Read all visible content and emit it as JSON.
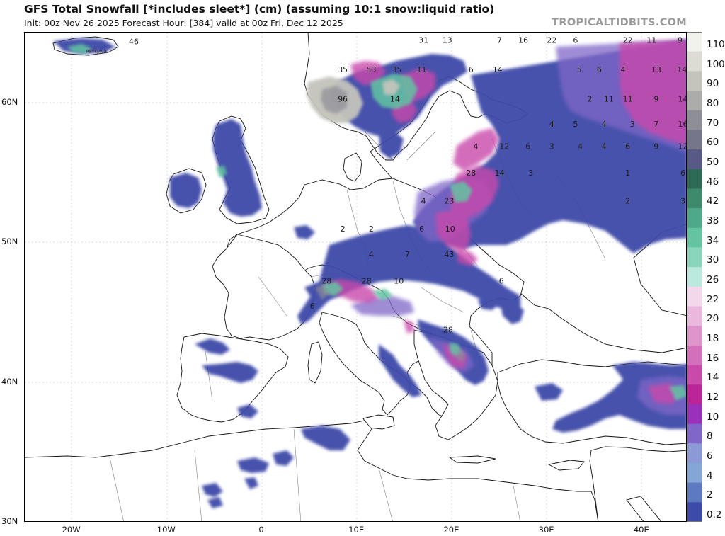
{
  "header": {
    "title": "GFS Total Snowfall [*includes sleet*] (cm) (assuming 10:1 snow:liquid ratio)",
    "subtitle": "Init: 00z Nov 26 2025   Forecast Hour: [384]   valid at 00z Fri, Dec 12 2025",
    "brand": "TROPICALTIDBITS.COM"
  },
  "map": {
    "lat_labels": [
      {
        "text": "60N",
        "lat": 60
      },
      {
        "text": "50N",
        "lat": 50
      },
      {
        "text": "40N",
        "lat": 40
      },
      {
        "text": "30N",
        "lat": 30
      }
    ],
    "lon_labels": [
      {
        "text": "20W",
        "lon": -20
      },
      {
        "text": "10W",
        "lon": -10
      },
      {
        "text": "0",
        "lon": 0
      },
      {
        "text": "10E",
        "lon": 10
      },
      {
        "text": "20E",
        "lon": 20
      },
      {
        "text": "30E",
        "lon": 30
      },
      {
        "text": "40E",
        "lon": 40
      }
    ],
    "snow_totals": [
      {
        "value": "46",
        "lon": -13.5,
        "lat": 64.2
      },
      {
        "value": "31",
        "lon": 17,
        "lat": 64.3
      },
      {
        "value": "13",
        "lon": 19.5,
        "lat": 64.3
      },
      {
        "value": "7",
        "lon": 25,
        "lat": 64.3
      },
      {
        "value": "16",
        "lon": 27.5,
        "lat": 64.3
      },
      {
        "value": "22",
        "lon": 30.5,
        "lat": 64.3
      },
      {
        "value": "6",
        "lon": 33,
        "lat": 64.3
      },
      {
        "value": "22",
        "lon": 38.5,
        "lat": 64.3
      },
      {
        "value": "11",
        "lon": 41,
        "lat": 64.3
      },
      {
        "value": "9",
        "lon": 44,
        "lat": 64.3
      },
      {
        "value": "35",
        "lon": 8.5,
        "lat": 62.2
      },
      {
        "value": "53",
        "lon": 11.5,
        "lat": 62.2
      },
      {
        "value": "35",
        "lon": 14.2,
        "lat": 62.2
      },
      {
        "value": "11",
        "lon": 16.8,
        "lat": 62.2
      },
      {
        "value": "6",
        "lon": 22,
        "lat": 62.2
      },
      {
        "value": "14",
        "lon": 24.8,
        "lat": 62.2
      },
      {
        "value": "5",
        "lon": 33.4,
        "lat": 62.2
      },
      {
        "value": "6",
        "lon": 35.5,
        "lat": 62.2
      },
      {
        "value": "4",
        "lon": 38,
        "lat": 62.2
      },
      {
        "value": "13",
        "lon": 41.5,
        "lat": 62.2
      },
      {
        "value": "14",
        "lon": 44.2,
        "lat": 62.2
      },
      {
        "value": "96",
        "lon": 8.5,
        "lat": 60.1
      },
      {
        "value": "14",
        "lon": 14,
        "lat": 60.1
      },
      {
        "value": "2",
        "lon": 34.5,
        "lat": 60.1
      },
      {
        "value": "11",
        "lon": 36.5,
        "lat": 60.1
      },
      {
        "value": "11",
        "lon": 38.5,
        "lat": 60.1
      },
      {
        "value": "9",
        "lon": 41.5,
        "lat": 60.1
      },
      {
        "value": "14",
        "lon": 44.3,
        "lat": 60.1
      },
      {
        "value": "4",
        "lon": 30.5,
        "lat": 58.3
      },
      {
        "value": "5",
        "lon": 33,
        "lat": 58.3
      },
      {
        "value": "4",
        "lon": 36,
        "lat": 58.3
      },
      {
        "value": "3",
        "lon": 39,
        "lat": 58.3
      },
      {
        "value": "7",
        "lon": 41.5,
        "lat": 58.3
      },
      {
        "value": "16",
        "lon": 44.3,
        "lat": 58.3
      },
      {
        "value": "4",
        "lon": 22.5,
        "lat": 56.7
      },
      {
        "value": "12",
        "lon": 25.5,
        "lat": 56.7
      },
      {
        "value": "6",
        "lon": 28,
        "lat": 56.7
      },
      {
        "value": "3",
        "lon": 30.5,
        "lat": 56.7
      },
      {
        "value": "4",
        "lon": 33.5,
        "lat": 56.7
      },
      {
        "value": "4",
        "lon": 36,
        "lat": 56.7
      },
      {
        "value": "6",
        "lon": 38.5,
        "lat": 56.7
      },
      {
        "value": "9",
        "lon": 41.5,
        "lat": 56.7
      },
      {
        "value": "12",
        "lon": 44.3,
        "lat": 56.7
      },
      {
        "value": "28",
        "lon": 22,
        "lat": 54.8
      },
      {
        "value": "14",
        "lon": 25,
        "lat": 54.8
      },
      {
        "value": "3",
        "lon": 28.3,
        "lat": 54.8
      },
      {
        "value": "1",
        "lon": 38.5,
        "lat": 54.8
      },
      {
        "value": "6",
        "lon": 44.3,
        "lat": 54.8
      },
      {
        "value": "4",
        "lon": 17,
        "lat": 52.8
      },
      {
        "value": "23",
        "lon": 19.7,
        "lat": 52.8
      },
      {
        "value": "2",
        "lon": 38.5,
        "lat": 52.8
      },
      {
        "value": "3",
        "lon": 44.3,
        "lat": 52.8
      },
      {
        "value": "2",
        "lon": 8.5,
        "lat": 50.8
      },
      {
        "value": "2",
        "lon": 11.5,
        "lat": 50.8
      },
      {
        "value": "6",
        "lon": 16.8,
        "lat": 50.8
      },
      {
        "value": "10",
        "lon": 19.8,
        "lat": 50.8
      },
      {
        "value": "4",
        "lon": 11.5,
        "lat": 49
      },
      {
        "value": "7",
        "lon": 15.3,
        "lat": 49
      },
      {
        "value": "43",
        "lon": 19.7,
        "lat": 49
      },
      {
        "value": "28",
        "lon": 6.8,
        "lat": 47.1
      },
      {
        "value": "28",
        "lon": 11,
        "lat": 47.1
      },
      {
        "value": "10",
        "lon": 14.4,
        "lat": 47.1
      },
      {
        "value": "6",
        "lon": 25.2,
        "lat": 47.1
      },
      {
        "value": "6",
        "lon": 5.3,
        "lat": 45.3
      },
      {
        "value": "28",
        "lon": 19.6,
        "lat": 43.6
      }
    ],
    "place_labels": [
      {
        "text": "REYKJAVIK",
        "lon": -18.5,
        "lat": 63.6
      }
    ]
  },
  "colorbar": {
    "unit": "cm",
    "levels": [
      "110",
      "100",
      "90",
      "80",
      "70",
      "60",
      "50",
      "46",
      "42",
      "38",
      "34",
      "30",
      "26",
      "22",
      "20",
      "18",
      "16",
      "14",
      "12",
      "10",
      "8",
      "6",
      "4",
      "2",
      "0.2"
    ],
    "colors": [
      "#f2f2ec",
      "#dcdcd4",
      "#c4c4bc",
      "#acacaa",
      "#8e8e96",
      "#76768a",
      "#585a86",
      "#2d6b57",
      "#3e8a6c",
      "#4ea98a",
      "#64c4a2",
      "#8ad6bd",
      "#bce9dd",
      "#f3d8ec",
      "#e9b8dc",
      "#df95cc",
      "#d46fbb",
      "#c94aab",
      "#bc2499",
      "#9b30bd",
      "#8066c8",
      "#8b99d7",
      "#83a6d6",
      "#5d7ac0",
      "#3c4aa8"
    ]
  }
}
